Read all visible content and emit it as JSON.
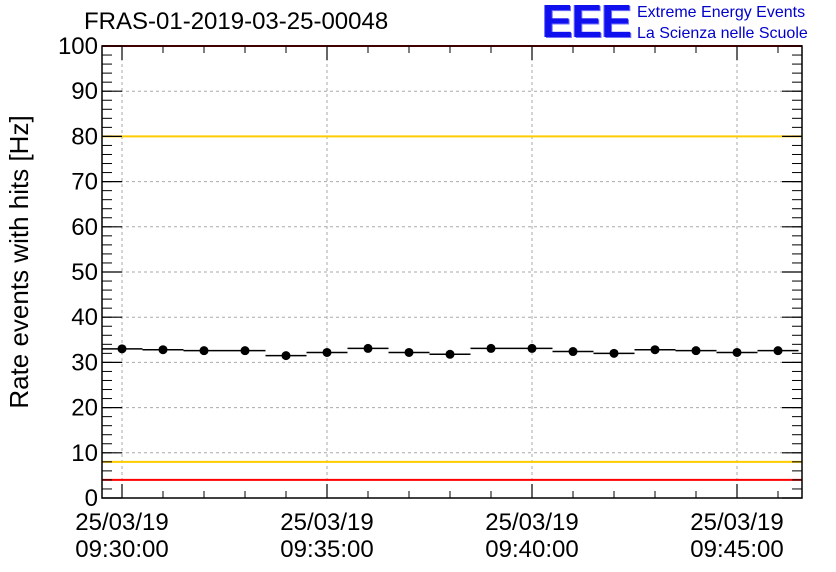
{
  "chart_data": {
    "type": "scatter",
    "title": "FRAS-01-2019-03-25-00048",
    "xlabel": "",
    "ylabel": "Rate events with hits [Hz]",
    "ylim": [
      0,
      100
    ],
    "yticks": [
      0,
      10,
      20,
      30,
      40,
      50,
      60,
      70,
      80,
      90,
      100
    ],
    "xlim_minutes": [
      0,
      16.2
    ],
    "xticks": [
      {
        "minute": 0,
        "date": "25/03/19",
        "time": "09:30:00"
      },
      {
        "minute": 5,
        "date": "25/03/19",
        "time": "09:35:00"
      },
      {
        "minute": 10,
        "date": "25/03/19",
        "time": "09:40:00"
      },
      {
        "minute": 15,
        "date": "25/03/19",
        "time": "09:45:00"
      }
    ],
    "bin_width_minutes": 1,
    "x": [
      0,
      1,
      2,
      3,
      4,
      5,
      6,
      7,
      8,
      9,
      10,
      11,
      12,
      13,
      14,
      15,
      16
    ],
    "values": [
      33.0,
      32.8,
      32.6,
      32.6,
      31.5,
      32.2,
      33.1,
      32.2,
      31.8,
      33.1,
      33.1,
      32.4,
      32.0,
      32.8,
      32.6,
      32.2,
      32.6
    ],
    "reference_lines": [
      {
        "y": 100,
        "color": "#ff0000"
      },
      {
        "y": 80,
        "color": "#ffcc00"
      },
      {
        "y": 8,
        "color": "#ffcc00"
      },
      {
        "y": 4,
        "color": "#ff0000"
      }
    ],
    "grid": true
  },
  "logo": {
    "mark": "EEE",
    "line1": "Extreme Energy Events",
    "line2": "La Scienza nelle Scuole"
  }
}
